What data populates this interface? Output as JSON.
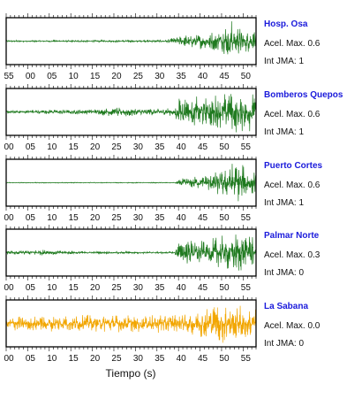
{
  "chart_data": [
    {
      "type": "line",
      "station": "Hosp. Osa",
      "accel_label": "Acel. Max. 0.6",
      "jma_label": "Int JMA: 1",
      "color": "#1f7a1f",
      "x_ticks": [
        "55",
        "00",
        "05",
        "10",
        "15",
        "20",
        "25",
        "30",
        "35",
        "40",
        "45",
        "50"
      ],
      "envelope": [
        [
          0,
          0.04
        ],
        [
          37,
          0.05
        ],
        [
          40,
          0.25
        ],
        [
          45,
          0.35
        ],
        [
          48,
          0.45
        ],
        [
          50,
          0.6
        ],
        [
          52,
          1.0
        ],
        [
          53,
          0.9
        ],
        [
          55,
          0.5
        ]
      ]
    },
    {
      "type": "line",
      "station": "Bomberos Quepos",
      "accel_label": "Acel. Max. 0.6",
      "jma_label": "Int JMA: 1",
      "color": "#1f7a1f",
      "x_ticks": [
        "00",
        "05",
        "10",
        "15",
        "20",
        "25",
        "30",
        "35",
        "40",
        "45",
        "50",
        "55"
      ],
      "envelope": [
        [
          0,
          0.08
        ],
        [
          20,
          0.12
        ],
        [
          28,
          0.25
        ],
        [
          32,
          0.15
        ],
        [
          39,
          0.2
        ],
        [
          40,
          0.7
        ],
        [
          45,
          0.7
        ],
        [
          50,
          0.9
        ],
        [
          55,
          0.95
        ],
        [
          58,
          0.85
        ]
      ]
    },
    {
      "type": "line",
      "station": "Puerto Cortes",
      "accel_label": "Acel. Max. 0.6",
      "jma_label": "Int JMA: 1",
      "color": "#1f7a1f",
      "x_ticks": [
        "00",
        "05",
        "10",
        "15",
        "20",
        "25",
        "30",
        "35",
        "40",
        "45",
        "50",
        "55"
      ],
      "envelope": [
        [
          0,
          0.02
        ],
        [
          39,
          0.02
        ],
        [
          40,
          0.2
        ],
        [
          45,
          0.3
        ],
        [
          50,
          0.6
        ],
        [
          53,
          1.0
        ],
        [
          55,
          0.8
        ],
        [
          58,
          0.5
        ]
      ]
    },
    {
      "type": "line",
      "station": "Palmar Norte",
      "accel_label": "Acel. Max. 0.3",
      "jma_label": "Int JMA: 0",
      "color": "#1f7a1f",
      "x_ticks": [
        "00",
        "05",
        "10",
        "15",
        "20",
        "25",
        "30",
        "35",
        "40",
        "45",
        "50",
        "55"
      ],
      "envelope": [
        [
          0,
          0.08
        ],
        [
          5,
          0.1
        ],
        [
          8,
          0.15
        ],
        [
          12,
          0.1
        ],
        [
          20,
          0.05
        ],
        [
          39,
          0.05
        ],
        [
          40,
          0.6
        ],
        [
          45,
          0.55
        ],
        [
          50,
          0.75
        ],
        [
          55,
          0.95
        ],
        [
          58,
          0.8
        ]
      ]
    },
    {
      "type": "line",
      "station": "La Sabana",
      "accel_label": "Acel. Max. 0.0",
      "jma_label": "Int JMA: 0",
      "color": "#f2a600",
      "x_ticks": [
        "00",
        "05",
        "10",
        "15",
        "20",
        "25",
        "30",
        "35",
        "40",
        "45",
        "50",
        "55"
      ],
      "envelope": [
        [
          0,
          0.35
        ],
        [
          30,
          0.4
        ],
        [
          40,
          0.45
        ],
        [
          45,
          0.6
        ],
        [
          50,
          1.0
        ],
        [
          55,
          0.8
        ],
        [
          58,
          0.7
        ]
      ]
    }
  ],
  "xlabel": "Tiempo (s)",
  "xlim": [
    0,
    58
  ]
}
